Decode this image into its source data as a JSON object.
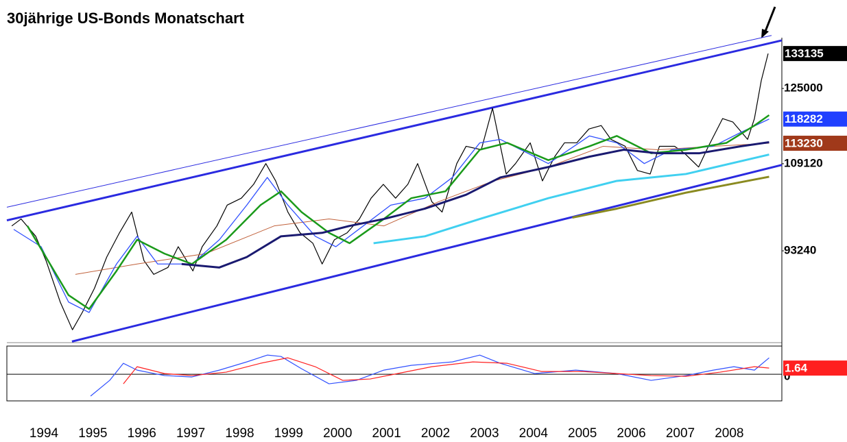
{
  "chart_data": {
    "type": "line",
    "title": "30jährige US-Bonds Monatschart",
    "log_scale": true,
    "xlim": [
      1993.3,
      2009.13
    ],
    "ylim": [
      79000,
      137000
    ],
    "xticks": [
      1994,
      1995,
      1996,
      1997,
      1998,
      1999,
      2000,
      2001,
      2002,
      2003,
      2004,
      2005,
      2006,
      2007,
      2008
    ],
    "yticks": [
      93240,
      109120,
      125000
    ],
    "highlight_labels": [
      {
        "value": 133135,
        "color": "#000000"
      },
      {
        "value": 118282,
        "color": "#2040ff"
      },
      {
        "value": 113230,
        "color": "#a0391a"
      }
    ],
    "series": [
      {
        "color": "#000000",
        "width": 1.2,
        "x": [
          1993.4,
          1993.59,
          1993.89,
          1994.1,
          1994.39,
          1994.64,
          1994.84,
          1995.09,
          1995.34,
          1995.6,
          1995.85,
          1996.1,
          1996.3,
          1996.59,
          1996.8,
          1997.1,
          1997.29,
          1997.59,
          1997.8,
          1998.09,
          1998.34,
          1998.59,
          1998.79,
          1999.04,
          1999.29,
          1999.55,
          1999.74,
          1999.99,
          2000.25,
          2000.5,
          2000.74,
          2000.99,
          2001.24,
          2001.49,
          2001.69,
          2001.98,
          2002.19,
          2002.49,
          2002.68,
          2002.99,
          2003.22,
          2003.5,
          2003.69,
          2003.99,
          2004.24,
          2004.49,
          2004.69,
          2004.94,
          2005.19,
          2005.44,
          2005.64,
          2005.93,
          2006.18,
          2006.44,
          2006.63,
          2006.94,
          2007.14,
          2007.43,
          2007.63,
          2007.92,
          2008.13,
          2008.43,
          2008.57,
          2008.71,
          2008.85
        ],
        "values": [
          97530,
          98760,
          95720,
          91620,
          85010,
          80860,
          83420,
          87150,
          92200,
          96320,
          100000,
          91620,
          89360,
          90480,
          93940,
          89920,
          93940,
          97530,
          101260,
          102540,
          105130,
          109150,
          105790,
          100000,
          96320,
          94530,
          91050,
          95120,
          96320,
          98760,
          102540,
          105130,
          102540,
          105130,
          109150,
          101890,
          100000,
          109150,
          112610,
          111910,
          120620,
          107110,
          109150,
          113310,
          105790,
          110520,
          113310,
          113310,
          116190,
          116910,
          114020,
          112610,
          107790,
          107110,
          112610,
          112610,
          111210,
          108470,
          112610,
          118390,
          117650,
          114020,
          118390,
          126810,
          133135
        ]
      },
      {
        "color": "#c0603a",
        "width": 1,
        "x": [
          1994.7,
          1995.96,
          1997.36,
          1998.76,
          1999.88,
          2001.0,
          2002.12,
          2003.24,
          2004.36,
          2005.48,
          2006.6,
          2007.73,
          2008.87
        ],
        "values": [
          89360,
          91050,
          92770,
          97530,
          98760,
          97530,
          101890,
          105790,
          108470,
          112610,
          111910,
          112610,
          113230
        ]
      },
      {
        "color": "#3050ff",
        "width": 1.3,
        "x": [
          1993.44,
          1994.0,
          1994.56,
          1994.98,
          1995.54,
          1995.96,
          1996.38,
          1997.08,
          1997.64,
          1998.2,
          1998.62,
          1999.04,
          1999.6,
          2000.02,
          2000.58,
          2001.14,
          2001.84,
          2002.4,
          2002.96,
          2003.38,
          2003.8,
          2004.36,
          2005.2,
          2005.76,
          2006.32,
          2006.88,
          2007.73,
          2008.29,
          2008.87
        ],
        "values": [
          96920,
          93940,
          85010,
          83420,
          91050,
          95720,
          91050,
          91050,
          95120,
          101260,
          106450,
          101260,
          95720,
          93940,
          97530,
          101260,
          102540,
          106450,
          113310,
          114020,
          111910,
          109150,
          114740,
          113310,
          109150,
          111910,
          112610,
          115460,
          118282
        ]
      },
      {
        "color": "#1a9a1a",
        "width": 2.5,
        "x": [
          1993.72,
          1994.56,
          1994.98,
          1995.54,
          1995.96,
          1996.52,
          1997.08,
          1997.78,
          1998.48,
          1998.9,
          1999.32,
          1999.88,
          2000.3,
          2001.0,
          2001.56,
          2002.26,
          2002.96,
          2003.52,
          2004.36,
          2005.2,
          2005.76,
          2006.46,
          2007.17,
          2008.0,
          2008.57,
          2008.87
        ],
        "values": [
          97530,
          86070,
          83950,
          89920,
          95120,
          92770,
          91050,
          95120,
          101260,
          103820,
          100000,
          96320,
          94530,
          98760,
          102540,
          103820,
          111910,
          113310,
          109830,
          112610,
          114740,
          111210,
          111910,
          113310,
          116910,
          119120
        ]
      },
      {
        "color": "#1a1a70",
        "width": 3,
        "x": [
          1996.87,
          1997.64,
          1998.2,
          1998.9,
          1999.74,
          2000.3,
          2001.0,
          2001.84,
          2002.68,
          2003.38,
          2004.36,
          2005.2,
          2005.9,
          2006.6,
          2007.45,
          2008.29,
          2008.87
        ],
        "values": [
          91050,
          90480,
          92200,
          95720,
          96320,
          97530,
          98760,
          100620,
          103180,
          106450,
          108470,
          110520,
          111910,
          111210,
          111210,
          112610,
          113450
        ]
      },
      {
        "color": "#40d0f0",
        "width": 3,
        "x": [
          2000.79,
          2001.84,
          2002.96,
          2004.36,
          2005.76,
          2007.17,
          2008.87
        ],
        "values": [
          94530,
          95720,
          98760,
          102540,
          105790,
          107110,
          110940
        ]
      },
      {
        "color": "#8a8a20",
        "width": 3,
        "x": [
          2004.85,
          2005.76,
          2007.17,
          2008.87
        ],
        "values": [
          99010,
          100620,
          103560,
          106580
        ]
      }
    ],
    "trendlines": [
      {
        "color": "#2a2ae0",
        "width": 3,
        "x": [
          1993.3,
          2009.13
        ],
        "values": [
          98510,
          136340
        ]
      },
      {
        "color": "#2a2ae0",
        "width": 3,
        "x": [
          1994.63,
          2009.13
        ],
        "values": [
          79160,
          108880
        ]
      },
      {
        "color": "#2a2ae0",
        "width": 1,
        "x": [
          1993.3,
          2008.92
        ],
        "values": [
          100880,
          137550
        ]
      }
    ],
    "indicator": {
      "ylim": [
        -7.1,
        7.5
      ],
      "yticks": [
        0
      ],
      "highlight_labels": [
        {
          "value": 1.64,
          "color": "#ff2020"
        }
      ],
      "series": [
        {
          "color": "#3050ff",
          "width": 1.2,
          "x": [
            1995.01,
            1995.4,
            1995.68,
            1995.96,
            1996.52,
            1997.08,
            1997.64,
            1998.2,
            1998.62,
            1998.9,
            1999.32,
            1999.88,
            2000.44,
            2001.0,
            2001.56,
            2002.4,
            2002.96,
            2003.38,
            2004.08,
            2004.92,
            2005.76,
            2006.46,
            2007.17,
            2007.73,
            2008.15,
            2008.57,
            2008.87
          ],
          "values": [
            -5.82,
            -1.64,
            2.91,
            1.09,
            -0.36,
            -0.73,
            1.09,
            3.28,
            5.1,
            4.73,
            1.46,
            -2.55,
            -1.64,
            1.09,
            2.37,
            3.28,
            5.1,
            2.91,
            0.18,
            1.09,
            0.18,
            -1.64,
            -0.36,
            1.09,
            2.0,
            1.09,
            4.37
          ]
        },
        {
          "color": "#ff2020",
          "width": 1.2,
          "x": [
            1995.68,
            1995.96,
            1996.52,
            1997.08,
            1997.78,
            1998.48,
            1999.04,
            1999.6,
            2000.16,
            2000.72,
            2001.28,
            2001.98,
            2002.82,
            2003.52,
            2004.22,
            2005.06,
            2005.76,
            2006.46,
            2007.17,
            2007.87,
            2008.57,
            2008.87
          ],
          "values": [
            -2.55,
            2.0,
            0.18,
            -0.36,
            0.55,
            2.91,
            4.37,
            2.0,
            -1.64,
            -1.27,
            0.18,
            2.0,
            3.28,
            2.91,
            0.73,
            0.73,
            0.18,
            -0.36,
            -0.55,
            0.55,
            2.0,
            1.64
          ]
        }
      ]
    }
  }
}
